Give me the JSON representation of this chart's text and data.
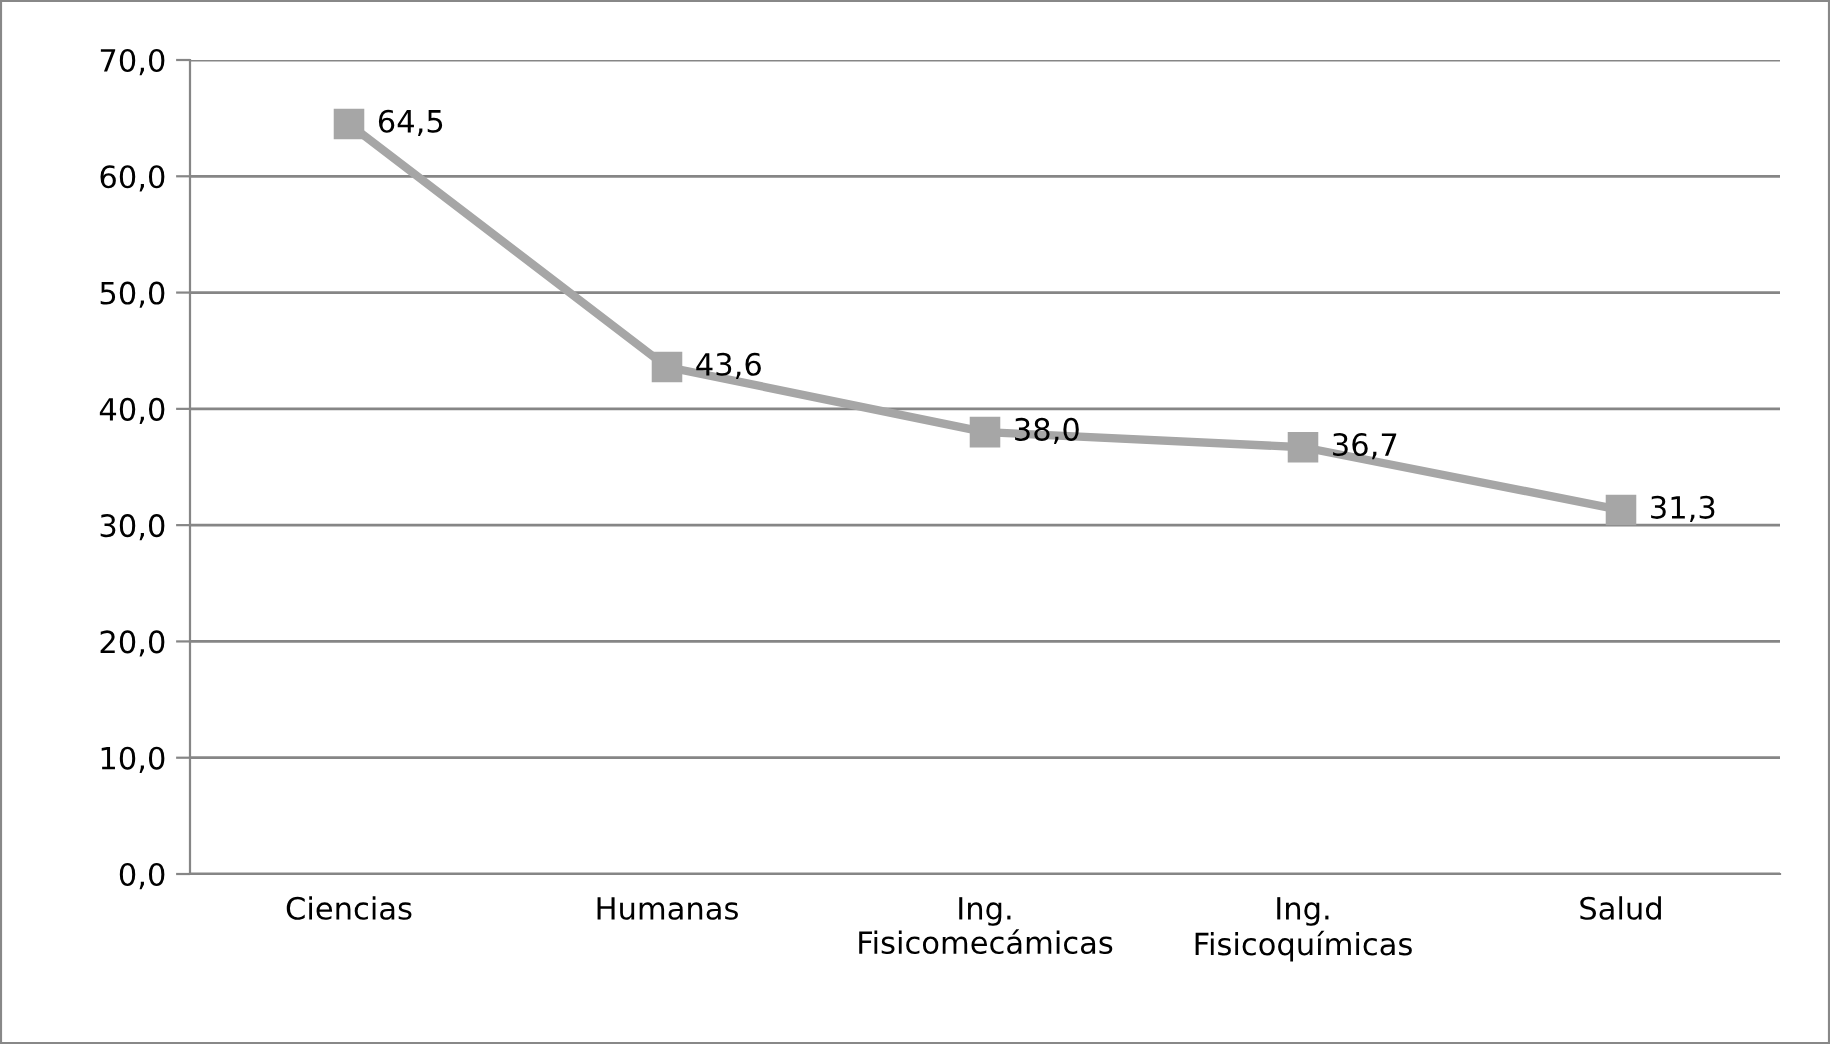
{
  "chart_data": {
    "type": "line",
    "categories": [
      "Ciencias",
      "Humanas",
      "Ing.\nFisicomecámicas",
      "Ing.\nFisicoquímicas",
      "Salud"
    ],
    "series": [
      {
        "color": "#a6a6a6",
        "values": [
          64.5,
          43.6,
          38.0,
          36.7,
          31.3
        ],
        "value_labels": [
          "64,5",
          "43,6",
          "38,0",
          "36,7",
          "31,3"
        ]
      }
    ],
    "ylim": [
      0,
      70
    ],
    "yticks": [
      {
        "value": 0,
        "label": "0,0"
      },
      {
        "value": 10,
        "label": "10,0"
      },
      {
        "value": 20,
        "label": "20,0"
      },
      {
        "value": 30,
        "label": "30,0"
      },
      {
        "value": 40,
        "label": "40,0"
      },
      {
        "value": 50,
        "label": "50,0"
      },
      {
        "value": 60,
        "label": "60,0"
      },
      {
        "value": 70,
        "label": "70,0"
      }
    ],
    "grid": "y",
    "marker": "square",
    "line_style": "solid",
    "legend": false
  }
}
